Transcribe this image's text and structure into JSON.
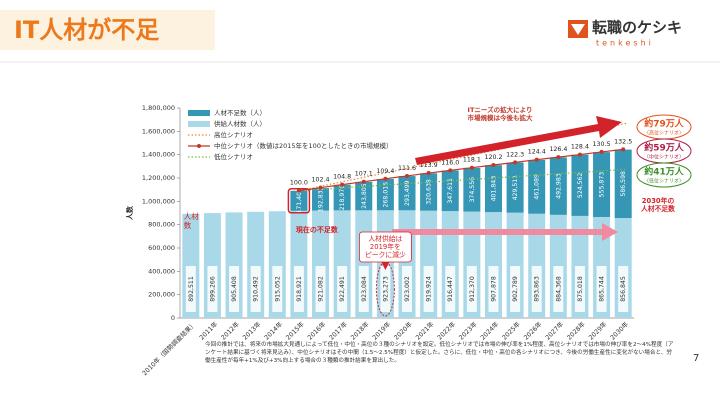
{
  "header": {
    "title": "IT人材が不足",
    "logo": "転職のケシキ",
    "logo_sub": "tenkeshi"
  },
  "chart_data": {
    "type": "bar",
    "stacked": true,
    "y_label": "人数",
    "categories": [
      "2010年（国勢調査結果）",
      "2011年",
      "2012年",
      "2013年",
      "2014年",
      "2015年",
      "2016年",
      "2017年",
      "2018年",
      "2019年",
      "2020年",
      "2021年",
      "2022年",
      "2023年",
      "2024年",
      "2025年",
      "2026年",
      "2027年",
      "2028年",
      "2029年",
      "2030年"
    ],
    "series": [
      {
        "name": "人材不足数（人）",
        "color": "#3596b5",
        "values": [
          null,
          null,
          null,
          null,
          null,
          171406,
          192832,
          218976,
          243805,
          268015,
          293499,
          320638,
          347611,
          374556,
          401843,
          429511,
          461089,
          492983,
          524562,
          555873,
          586598
        ],
        "value_labels": [
          null,
          null,
          null,
          null,
          null,
          "171,406",
          "192,832",
          "218,976",
          "243,805",
          "268,015",
          "293,499",
          "320,638",
          "347,611",
          "374,556",
          "401,843",
          "429,511",
          "461,089",
          "492,983",
          "524,562",
          "555,873",
          "586,598"
        ]
      },
      {
        "name": "供給人材数（人）",
        "color": "#a9d9e8",
        "values": [
          892511,
          899266,
          905408,
          910492,
          915052,
          918921,
          921082,
          922491,
          923084,
          923273,
          923002,
          919924,
          916447,
          912370,
          907878,
          902789,
          893863,
          884368,
          875018,
          865744,
          856845
        ],
        "value_labels": [
          "892,511",
          "899,266",
          "905,408",
          "910,492",
          "915,052",
          "918,921",
          "921,082",
          "922,491",
          "923,084",
          "923,273",
          "923,002",
          "919,924",
          "916,447",
          "912,370",
          "907,878",
          "902,789",
          "893,863",
          "884,368",
          "875,018",
          "865,744",
          "856,845"
        ]
      },
      {
        "name": "中位シナリオ（数値は2015年を100としたときの市場規模）",
        "type": "line",
        "axis": "y2",
        "color": "#c0392b",
        "values": [
          null,
          null,
          null,
          null,
          null,
          100,
          102.4,
          104.8,
          107.1,
          109.4,
          111.6,
          113.9,
          116,
          118.1,
          120.2,
          122.3,
          124.4,
          126.4,
          128.4,
          130.5,
          132.5
        ],
        "value_labels": [
          null,
          null,
          null,
          null,
          null,
          "100.0",
          "102.4",
          "104.8",
          "107.1",
          "109.4",
          "111.6",
          "113.9",
          "116.0",
          "118.1",
          "120.2",
          "122.3",
          "124.4",
          "126.4",
          "128.4",
          "130.5",
          "132.5"
        ]
      }
    ],
    "reference_lines": [
      {
        "name": "高位シナリオ",
        "color": "#f0883a"
      },
      {
        "name": "低位シナリオ",
        "color": "#7dbb3c"
      }
    ],
    "ylim": [
      0,
      1800000
    ],
    "yticks": [
      {
        "value": 0,
        "label": "0"
      },
      {
        "value": 200000,
        "label": "200,000"
      },
      {
        "value": 400000,
        "label": "400,000"
      },
      {
        "value": 600000,
        "label": "600,000"
      },
      {
        "value": 800000,
        "label": "800,000"
      },
      {
        "value": 1000000,
        "label": "1,000,000"
      },
      {
        "value": 1200000,
        "label": "1,200,000"
      },
      {
        "value": 1400000,
        "label": "1,400,000"
      },
      {
        "value": 1600000,
        "label": "1,600,000"
      },
      {
        "value": 1800000,
        "label": "1,800,000"
      }
    ],
    "y2lim": [
      0,
      165
    ],
    "legend": "top-left",
    "annotations": {
      "market": [
        "ITニーズの拡大により",
        "市場規模は今後も拡大"
      ],
      "talent": [
        "人材",
        "数"
      ],
      "current": "現在の不足数",
      "peak": [
        "人材供給は",
        "2019年を",
        "ピークに減少"
      ],
      "shortage2030": [
        "2030年の",
        "人材不足数"
      ],
      "callouts": [
        {
          "text": "約79万人",
          "note": "（高位シナリオ）",
          "color": "#e0531e"
        },
        {
          "text": "約59万人",
          "note": "（中位シナリオ）",
          "color": "#b0204a"
        },
        {
          "text": "約41万人",
          "note": "（低位シナリオ）",
          "color": "#3f8f2a"
        }
      ]
    }
  },
  "footnote": "今回の推計では、将来の市場拡大見通しによって低位・中位・高位の３種のシナリオを設定。低位シナリオでは市場の伸び率を1%程度、高位シナリオでは市場の伸び率を2～4%程度（アンケート結果に基づく将来見込み）、中位シナリオはその中間（1.5～2.5%程度）と仮定した。さらに、低位・中位・高位の各シナリオにつき、今後の労働生産性に変化がない場合と、労働生産性が毎年+1%及び+3%向上する場合の３種類の推計結果を算出した。",
  "page_number": "7"
}
